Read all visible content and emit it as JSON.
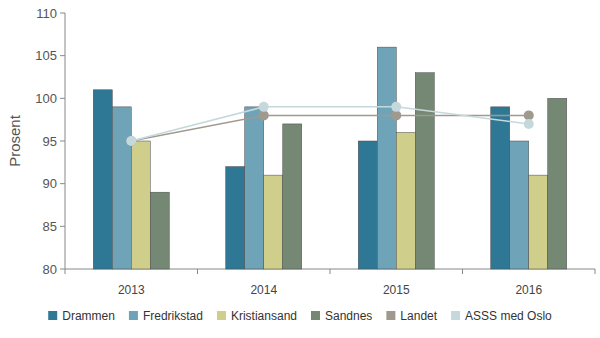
{
  "chart_data": {
    "type": "bar",
    "y_label": "Prosent",
    "categories": [
      "2013",
      "2014",
      "2015",
      "2016"
    ],
    "series": [
      {
        "name": "Drammen",
        "color": "#2e7896",
        "type": "bar",
        "values": [
          101,
          92,
          95,
          99
        ]
      },
      {
        "name": "Fredrikstad",
        "color": "#6fa3b8",
        "type": "bar",
        "values": [
          99,
          99,
          106,
          95
        ]
      },
      {
        "name": "Kristiansand",
        "color": "#cfce8a",
        "type": "bar",
        "values": [
          95,
          91,
          96,
          91
        ]
      },
      {
        "name": "Sandnes",
        "color": "#748873",
        "type": "bar",
        "values": [
          89,
          97,
          103,
          100
        ]
      },
      {
        "name": "Landet",
        "color": "#a09a8e",
        "type": "line",
        "marker": "circle",
        "values": [
          95,
          98,
          98,
          98
        ]
      },
      {
        "name": "ASSS med Oslo",
        "color": "#c5d9dc",
        "type": "line",
        "marker": "circle",
        "values": [
          95,
          99,
          99,
          97
        ]
      }
    ],
    "ylim": [
      80,
      110
    ],
    "yticks": [
      80,
      85,
      90,
      95,
      100,
      105,
      110
    ],
    "grid": false,
    "legend": "bottom"
  }
}
